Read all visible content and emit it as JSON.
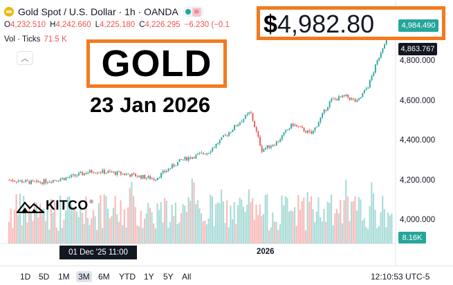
{
  "header": {
    "title": "Gold Spot / U.S. Dollar · 1h · OANDA",
    "ohlc": [
      {
        "key": "O",
        "value": "4,232.510"
      },
      {
        "key": "H",
        "value": "4,242.660"
      },
      {
        "key": "L",
        "value": "4,225.180"
      },
      {
        "key": "C",
        "value": "4,226.295"
      }
    ],
    "change": "−6.230 (−0.1"
  },
  "volume": {
    "label": "Vol · Ticks",
    "value": "71.5 K"
  },
  "overlay": {
    "headline": "GOLD",
    "date": "23 Jan 2026",
    "price_dollar": "$",
    "price": "4,982.80",
    "brand": "KITCO",
    "brand_mark": "®"
  },
  "price_axis": {
    "current_price_tag": "4,984.490",
    "secondary_tag": "4,863.767",
    "ticks": [
      "4,800.000",
      "4,600.000",
      "4,400.000",
      "4,200.000",
      "4,000.000"
    ],
    "volume_tag": "8.16K"
  },
  "time_axis": {
    "crosshair_date": "01 Dec '25   11:00",
    "year_label": "2026"
  },
  "timeframes": [
    "1D",
    "5D",
    "1M",
    "3M",
    "6M",
    "YTD",
    "1Y",
    "5Y",
    "All"
  ],
  "active_timeframe": "3M",
  "clock": "12:10:53 UTC-5",
  "colors": {
    "up": "#26a69a",
    "down": "#ef5350",
    "highlight": "#f47a20",
    "gold_icon": "#f2b705"
  },
  "chart_data": {
    "type": "candlestick",
    "instrument": "Gold Spot / U.S. Dollar",
    "interval": "1h",
    "ylim": [
      3900,
      5050
    ],
    "y_ticks": [
      4000,
      4200,
      4400,
      4600,
      4800
    ],
    "x_labels": [
      "01 Dec '25",
      "2026"
    ],
    "last_price": 4984.49,
    "secondary_price": 4863.767,
    "volume_last": "8.16K",
    "trend_points": [
      {
        "t": 0,
        "price": 4200
      },
      {
        "t": 0.07,
        "price": 4185
      },
      {
        "t": 0.15,
        "price": 4210
      },
      {
        "t": 0.22,
        "price": 4245
      },
      {
        "t": 0.3,
        "price": 4230
      },
      {
        "t": 0.38,
        "price": 4205
      },
      {
        "t": 0.45,
        "price": 4300
      },
      {
        "t": 0.52,
        "price": 4340
      },
      {
        "t": 0.58,
        "price": 4450
      },
      {
        "t": 0.63,
        "price": 4540
      },
      {
        "t": 0.66,
        "price": 4350
      },
      {
        "t": 0.7,
        "price": 4390
      },
      {
        "t": 0.74,
        "price": 4480
      },
      {
        "t": 0.79,
        "price": 4430
      },
      {
        "t": 0.84,
        "price": 4600
      },
      {
        "t": 0.88,
        "price": 4620
      },
      {
        "t": 0.91,
        "price": 4590
      },
      {
        "t": 0.94,
        "price": 4680
      },
      {
        "t": 0.97,
        "price": 4840
      },
      {
        "t": 1.0,
        "price": 4984
      }
    ]
  }
}
